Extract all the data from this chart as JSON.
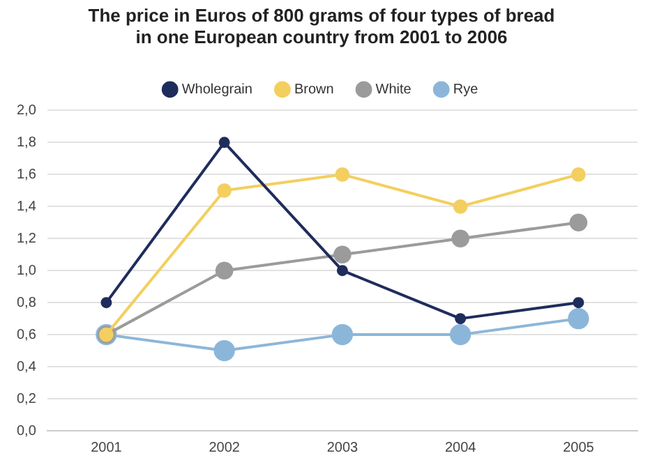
{
  "chart_data": {
    "type": "line",
    "title": "The price in Euros of 800 grams of four types of bread\nin one European country from 2001 to 2006",
    "categories": [
      "2001",
      "2002",
      "2003",
      "2004",
      "2005"
    ],
    "series": [
      {
        "name": "Wholegrain",
        "color": "#1f2d5c",
        "values": [
          0.8,
          1.8,
          1.0,
          0.7,
          0.8
        ]
      },
      {
        "name": "Brown",
        "color": "#f3cf5f",
        "values": [
          0.6,
          1.5,
          1.6,
          1.4,
          1.6
        ]
      },
      {
        "name": "White",
        "color": "#9b9b9b",
        "values": [
          0.6,
          1.0,
          1.1,
          1.2,
          1.3
        ]
      },
      {
        "name": "Rye",
        "color": "#8cb6d9",
        "values": [
          0.6,
          0.5,
          0.6,
          0.6,
          0.7
        ]
      }
    ],
    "ylim": [
      0,
      2
    ],
    "yticks": [
      {
        "value": 0,
        "label": "0,0"
      },
      {
        "value": 0.2,
        "label": "0,2"
      },
      {
        "value": 0.4,
        "label": "0,4"
      },
      {
        "value": 0.6,
        "label": "0,6"
      },
      {
        "value": 0.8,
        "label": "0,8"
      },
      {
        "value": 1,
        "label": "1,0"
      },
      {
        "value": 1.2,
        "label": "1,2"
      },
      {
        "value": 1.4,
        "label": "1,4"
      },
      {
        "value": 1.6,
        "label": "1,6"
      },
      {
        "value": 1.8,
        "label": "1,8"
      },
      {
        "value": 2,
        "label": "2,0"
      }
    ],
    "grid": "y",
    "legend": "top",
    "marker": "circle",
    "line_style": "solid"
  }
}
